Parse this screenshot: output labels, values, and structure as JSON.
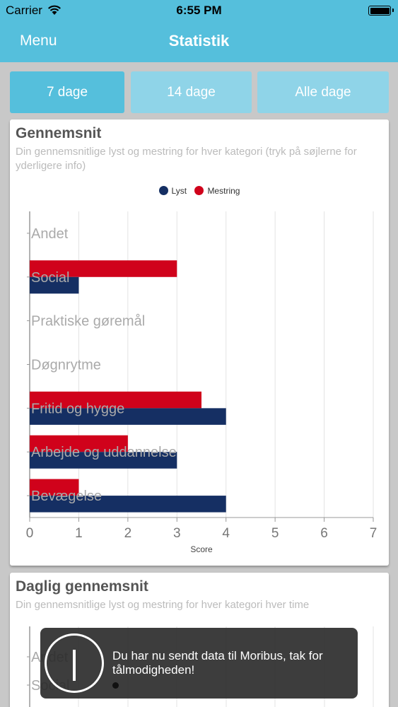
{
  "status_bar": {
    "carrier": "Carrier",
    "time": "6:55 PM"
  },
  "nav": {
    "menu_label": "Menu",
    "title": "Statistik"
  },
  "tabs": [
    {
      "label": "7 dage",
      "active": true
    },
    {
      "label": "14 dage",
      "active": false
    },
    {
      "label": "Alle dage",
      "active": false
    }
  ],
  "card_average": {
    "title": "Gennemsnit",
    "subtitle": "Din gennemsnitlige lyst og mestring for hver kategori (tryk på søjlerne for yderligere info)"
  },
  "card_daily": {
    "title": "Daglig gennemsnit",
    "subtitle": "Din gennemsnitlige lyst og mestring for hver kategori hver time"
  },
  "chart_data": [
    {
      "type": "bar",
      "orientation": "horizontal",
      "categories": [
        "Andet",
        "Social",
        "Praktiske gøremål",
        "Døgnrytme",
        "Fritid og hygge",
        "Arbejde og uddannelse",
        "Bevægelse"
      ],
      "series": [
        {
          "name": "Lyst",
          "color": "#152f63",
          "values": [
            0,
            1,
            0,
            0,
            4,
            3,
            4
          ]
        },
        {
          "name": "Mestring",
          "color": "#d0021b",
          "values": [
            0,
            3,
            0,
            0,
            3.5,
            2,
            1
          ]
        }
      ],
      "xlabel": "Score",
      "xlim": [
        0,
        7
      ],
      "xticks": [
        "0",
        "1",
        "2",
        "3",
        "4",
        "5",
        "6",
        "7"
      ],
      "grid": true,
      "legend": "top-center"
    }
  ],
  "daily_chart": {
    "visible_categories": [
      "Andet",
      "Social"
    ]
  },
  "toast": {
    "icon": "info-icon",
    "message": "Du har nu sendt data til Moribus, tak for tålmodigheden!"
  }
}
